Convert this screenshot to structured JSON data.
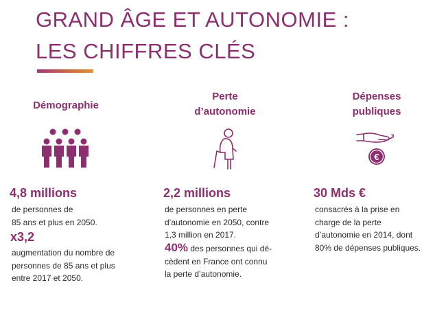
{
  "header": {
    "title_line1": "GRAND ÂGE ET AUTONOMIE :",
    "title_line2": "LES CHIFFRES CLÉS"
  },
  "colors": {
    "accent": "#8c2f6f",
    "bar_gradient_start": "#a03a74",
    "bar_gradient_end": "#e0913a",
    "text": "#2a2a2a"
  },
  "columns": {
    "demographie": {
      "heading": "Démographie",
      "icon": "people-group-icon",
      "stat1": "4,8 millions",
      "stat1_lines": [
        "de personnes de",
        "85 ans et plus en 2050."
      ],
      "stat2": "x3,2",
      "stat2_lines": [
        "augmentation du nombre de",
        "personnes de 85 ans et plus",
        "entre 2017 et 2050."
      ]
    },
    "perte": {
      "heading_line1": "Perte",
      "heading_line2": "d’autonomie",
      "icon": "elderly-person-cane-icon",
      "stat1": "2,2 millions",
      "stat1_lines": [
        "de personnes en perte",
        "d’autonomie en 2050, contre",
        "1,3 million en 2017."
      ],
      "stat2": "40%",
      "stat2_rest": " des personnes qui dé-",
      "stat2_lines": [
        "cèdent en France ont connu",
        "la perte d’autonomie."
      ]
    },
    "depenses": {
      "heading_line1": "Dépenses",
      "heading_line2": "publiques",
      "icon": "hand-euro-coin-icon",
      "stat1": "30 Mds €",
      "stat1_lines": [
        "consacrés à la prise en",
        "charge de la perte",
        "d’autonomie en 2014, dont",
        "80% de dépenses publiques."
      ]
    }
  }
}
